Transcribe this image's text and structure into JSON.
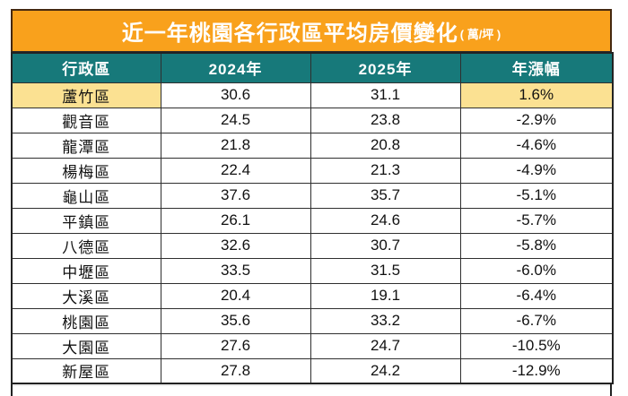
{
  "title": {
    "main": "近一年桃園各行政區平均房價變化",
    "unit": "( 萬/坪 )"
  },
  "colors": {
    "title_bg": "#F9A11C",
    "title_border": "#45280F",
    "header_bg": "#17797A",
    "highlight_bg": "#FBE192",
    "grid_border": "#2f2f2f",
    "text_dark": "#111111",
    "text_light": "#ffffff"
  },
  "table": {
    "columns": [
      "行政區",
      "2024年",
      "2025年",
      "年漲幅"
    ],
    "rows": [
      {
        "district": "蘆竹區",
        "y2024": "30.6",
        "y2025": "31.1",
        "change": "1.6%",
        "highlight": true
      },
      {
        "district": "觀音區",
        "y2024": "24.5",
        "y2025": "23.8",
        "change": "-2.9%",
        "highlight": false
      },
      {
        "district": "龍潭區",
        "y2024": "21.8",
        "y2025": "20.8",
        "change": "-4.6%",
        "highlight": false
      },
      {
        "district": "楊梅區",
        "y2024": "22.4",
        "y2025": "21.3",
        "change": "-4.9%",
        "highlight": false
      },
      {
        "district": "龜山區",
        "y2024": "37.6",
        "y2025": "35.7",
        "change": "-5.1%",
        "highlight": false
      },
      {
        "district": "平鎮區",
        "y2024": "26.1",
        "y2025": "24.6",
        "change": "-5.7%",
        "highlight": false
      },
      {
        "district": "八德區",
        "y2024": "32.6",
        "y2025": "30.7",
        "change": "-5.8%",
        "highlight": false
      },
      {
        "district": "中壢區",
        "y2024": "33.5",
        "y2025": "31.5",
        "change": "-6.0%",
        "highlight": false
      },
      {
        "district": "大溪區",
        "y2024": "20.4",
        "y2025": "19.1",
        "change": "-6.4%",
        "highlight": false
      },
      {
        "district": "桃園區",
        "y2024": "35.6",
        "y2025": "33.2",
        "change": "-6.7%",
        "highlight": false
      },
      {
        "district": "大園區",
        "y2024": "27.6",
        "y2025": "24.7",
        "change": "-10.5%",
        "highlight": false
      },
      {
        "district": "新屋區",
        "y2024": "27.8",
        "y2025": "24.2",
        "change": "-12.9%",
        "highlight": false
      }
    ]
  },
  "chart_data": {
    "type": "table",
    "title": "近一年桃園各行政區平均房價變化 ( 萬/坪 )",
    "columns": [
      "行政區",
      "2024年",
      "2025年",
      "年漲幅"
    ],
    "categories": [
      "蘆竹區",
      "觀音區",
      "龍潭區",
      "楊梅區",
      "龜山區",
      "平鎮區",
      "八德區",
      "中壢區",
      "大溪區",
      "桃園區",
      "大園區",
      "新屋區"
    ],
    "series": [
      {
        "name": "2024年",
        "values": [
          30.6,
          24.5,
          21.8,
          22.4,
          37.6,
          26.1,
          32.6,
          33.5,
          20.4,
          35.6,
          27.6,
          27.8
        ]
      },
      {
        "name": "2025年",
        "values": [
          31.1,
          23.8,
          20.8,
          21.3,
          35.7,
          24.6,
          30.7,
          31.5,
          19.1,
          33.2,
          24.7,
          24.2
        ]
      },
      {
        "name": "年漲幅(%)",
        "values": [
          1.6,
          -2.9,
          -4.6,
          -4.9,
          -5.1,
          -5.7,
          -5.8,
          -6.0,
          -6.4,
          -6.7,
          -10.5,
          -12.9
        ]
      }
    ],
    "annotations": [
      "蘆竹區 is the only district with a positive change and is highlighted in yellow"
    ],
    "unit": "萬/坪"
  }
}
